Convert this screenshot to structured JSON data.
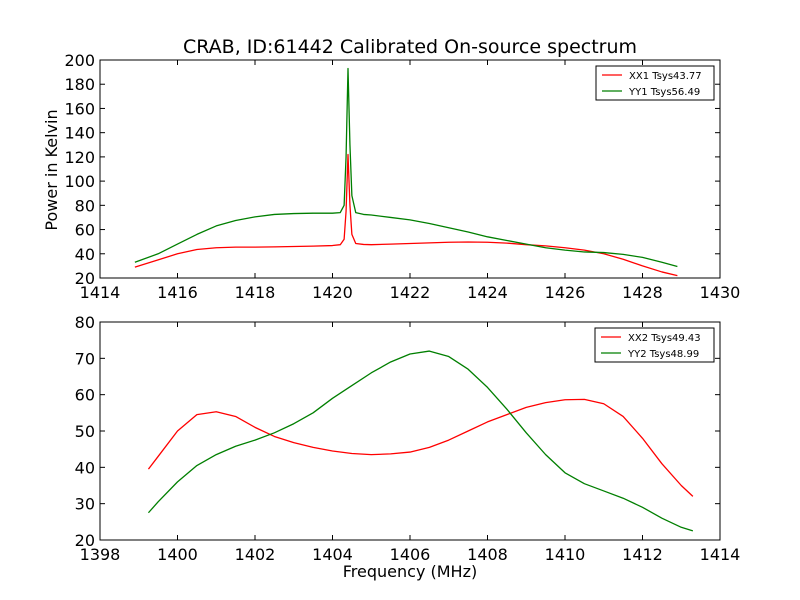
{
  "figure": {
    "title": "CRAB, ID:61442 Calibrated On-source spectrum",
    "xlabel": "Frequency (MHz)",
    "ylabel": "Power in Kelvin"
  },
  "colors": {
    "red": "#ff0000",
    "green": "#007f00",
    "axes": "#000000",
    "background": "#ffffff"
  },
  "chart_data": [
    {
      "type": "line",
      "title": "CRAB, ID:61442 Calibrated On-source spectrum",
      "xlabel": "",
      "ylabel": "Power in Kelvin",
      "xlim": [
        1414,
        1430
      ],
      "ylim": [
        20,
        200
      ],
      "xticks": [
        1414,
        1416,
        1418,
        1420,
        1422,
        1424,
        1426,
        1428,
        1430
      ],
      "yticks": [
        20,
        40,
        60,
        80,
        100,
        120,
        140,
        160,
        180,
        200
      ],
      "grid": false,
      "legend": "top-right",
      "series": [
        {
          "name": "XX1 Tsys43.77",
          "color": "#ff0000",
          "x": [
            1414.9,
            1415.5,
            1416.0,
            1416.5,
            1417.0,
            1417.5,
            1418.0,
            1418.5,
            1419.0,
            1419.5,
            1420.0,
            1420.2,
            1420.3,
            1420.35,
            1420.4,
            1420.45,
            1420.5,
            1420.6,
            1420.8,
            1421.0,
            1421.5,
            1422.0,
            1422.5,
            1423.0,
            1423.5,
            1424.0,
            1424.5,
            1425.0,
            1425.5,
            1426.0,
            1426.5,
            1427.0,
            1427.5,
            1428.0,
            1428.5,
            1428.9
          ],
          "y": [
            29,
            35,
            40,
            43.5,
            45,
            45.5,
            45.5,
            45.7,
            46,
            46.3,
            46.8,
            47.5,
            52,
            75,
            122,
            80,
            56,
            48.5,
            47.7,
            47.5,
            48,
            48.5,
            49,
            49.5,
            49.7,
            49.5,
            48.8,
            47.5,
            46.5,
            45,
            43,
            40,
            35.5,
            30,
            25,
            22
          ]
        },
        {
          "name": "YY1 Tsys56.49",
          "color": "#007f00",
          "x": [
            1414.9,
            1415.5,
            1416.0,
            1416.5,
            1417.0,
            1417.5,
            1418.0,
            1418.5,
            1419.0,
            1419.5,
            1420.0,
            1420.2,
            1420.3,
            1420.35,
            1420.4,
            1420.45,
            1420.5,
            1420.6,
            1420.8,
            1421.0,
            1421.5,
            1422.0,
            1422.5,
            1423.0,
            1423.5,
            1424.0,
            1424.5,
            1425.0,
            1425.5,
            1426.0,
            1426.5,
            1427.0,
            1427.5,
            1428.0,
            1428.5,
            1428.9
          ],
          "y": [
            33,
            40,
            48,
            56,
            63,
            67.5,
            70.5,
            72.5,
            73.2,
            73.5,
            73.5,
            74,
            80,
            120,
            193,
            130,
            88,
            74,
            72.5,
            72,
            70,
            68,
            65,
            61.5,
            58,
            54,
            51,
            48,
            45,
            43,
            41.5,
            41,
            39.5,
            37,
            33,
            29.5
          ]
        }
      ]
    },
    {
      "type": "line",
      "title": "",
      "xlabel": "Frequency (MHz)",
      "ylabel": "",
      "xlim": [
        1398,
        1414
      ],
      "ylim": [
        20,
        80
      ],
      "xticks": [
        1398,
        1400,
        1402,
        1404,
        1406,
        1408,
        1410,
        1412,
        1414
      ],
      "yticks": [
        20,
        30,
        40,
        50,
        60,
        70,
        80
      ],
      "grid": false,
      "legend": "top-right",
      "series": [
        {
          "name": "XX2 Tsys49.43",
          "color": "#ff0000",
          "x": [
            1399.25,
            1399.5,
            1400.0,
            1400.5,
            1401.0,
            1401.5,
            1402.0,
            1402.5,
            1403.0,
            1403.5,
            1404.0,
            1404.5,
            1405.0,
            1405.5,
            1406.0,
            1406.5,
            1407.0,
            1407.5,
            1408.0,
            1408.5,
            1409.0,
            1409.5,
            1410.0,
            1410.5,
            1411.0,
            1411.5,
            1412.0,
            1412.5,
            1413.0,
            1413.3
          ],
          "y": [
            39.5,
            43,
            50,
            54.5,
            55.3,
            54,
            51,
            48.5,
            46.8,
            45.5,
            44.5,
            43.8,
            43.5,
            43.7,
            44.2,
            45.5,
            47.5,
            50,
            52.5,
            54.5,
            56.5,
            57.8,
            58.6,
            58.7,
            57.5,
            54,
            48,
            41,
            35,
            32
          ]
        },
        {
          "name": "YY2 Tsys48.99",
          "color": "#007f00",
          "x": [
            1399.25,
            1399.5,
            1400.0,
            1400.5,
            1401.0,
            1401.5,
            1402.0,
            1402.5,
            1403.0,
            1403.5,
            1404.0,
            1404.5,
            1405.0,
            1405.5,
            1406.0,
            1406.5,
            1407.0,
            1407.5,
            1408.0,
            1408.5,
            1409.0,
            1409.5,
            1410.0,
            1410.5,
            1411.0,
            1411.5,
            1412.0,
            1412.5,
            1413.0,
            1413.3
          ],
          "y": [
            27.5,
            30.5,
            36,
            40.5,
            43.5,
            45.8,
            47.5,
            49.5,
            52,
            55,
            59,
            62.5,
            66,
            69,
            71.2,
            72,
            70.5,
            67,
            62,
            56,
            49.5,
            43.5,
            38.5,
            35.5,
            33.5,
            31.5,
            29,
            26,
            23.5,
            22.5
          ]
        }
      ]
    }
  ]
}
